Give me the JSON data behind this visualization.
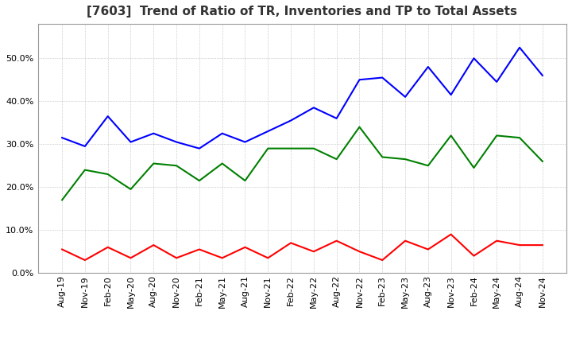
{
  "title": "[7603]  Trend of Ratio of TR, Inventories and TP to Total Assets",
  "ylim": [
    0.0,
    0.58
  ],
  "yticks": [
    0.0,
    0.1,
    0.2,
    0.3,
    0.4,
    0.5
  ],
  "background_color": "#ffffff",
  "plot_bg_color": "#ffffff",
  "grid_color": "#aaaaaa",
  "labels": [
    "Aug-19",
    "Nov-19",
    "Feb-20",
    "May-20",
    "Aug-20",
    "Nov-20",
    "Feb-21",
    "May-21",
    "Aug-21",
    "Nov-21",
    "Feb-22",
    "May-22",
    "Aug-22",
    "Nov-22",
    "Feb-23",
    "May-23",
    "Aug-23",
    "Nov-23",
    "Feb-24",
    "May-24",
    "Aug-24",
    "Nov-24"
  ],
  "trade_receivables": [
    0.055,
    0.03,
    0.06,
    0.035,
    0.065,
    0.035,
    0.055,
    0.035,
    0.06,
    0.035,
    0.07,
    0.05,
    0.075,
    0.05,
    0.03,
    0.075,
    0.055,
    0.09,
    0.04,
    0.075,
    0.065,
    0.065
  ],
  "inventories": [
    0.315,
    0.295,
    0.365,
    0.305,
    0.325,
    0.305,
    0.29,
    0.325,
    0.305,
    0.33,
    0.355,
    0.385,
    0.36,
    0.45,
    0.455,
    0.41,
    0.48,
    0.415,
    0.5,
    0.445,
    0.525,
    0.46
  ],
  "trade_payables": [
    0.17,
    0.24,
    0.23,
    0.195,
    0.255,
    0.25,
    0.215,
    0.255,
    0.215,
    0.29,
    0.29,
    0.29,
    0.265,
    0.34,
    0.27,
    0.265,
    0.25,
    0.32,
    0.245,
    0.32,
    0.315,
    0.26
  ],
  "tr_color": "#ff0000",
  "inv_color": "#0000ff",
  "tp_color": "#008000",
  "line_width": 1.5,
  "title_fontsize": 11,
  "tick_fontsize": 8,
  "legend_fontsize": 9
}
